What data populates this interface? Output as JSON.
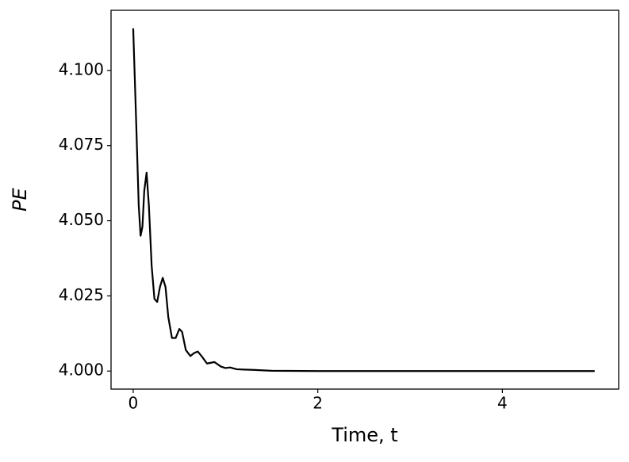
{
  "chart_data": {
    "type": "line",
    "xlabel": "Time, t",
    "ylabel": "PE",
    "x": [
      0.0,
      0.03,
      0.06,
      0.08,
      0.1,
      0.12,
      0.145,
      0.17,
      0.2,
      0.23,
      0.26,
      0.29,
      0.32,
      0.35,
      0.38,
      0.42,
      0.46,
      0.5,
      0.53,
      0.57,
      0.62,
      0.66,
      0.7,
      0.74,
      0.8,
      0.88,
      0.95,
      1.0,
      1.05,
      1.12,
      1.2,
      1.3,
      1.5,
      2.0,
      3.0,
      4.0,
      5.0
    ],
    "series": [
      {
        "color": "#000000",
        "values": [
          4.114,
          4.085,
          4.055,
          4.045,
          4.048,
          4.06,
          4.066,
          4.055,
          4.035,
          4.024,
          4.023,
          4.028,
          4.031,
          4.028,
          4.018,
          4.011,
          4.011,
          4.014,
          4.013,
          4.007,
          4.005,
          4.006,
          4.0065,
          4.005,
          4.0025,
          4.003,
          4.0015,
          4.001,
          4.0012,
          4.0006,
          4.0005,
          4.0004,
          4.0001,
          4.0,
          4.0,
          4.0,
          4.0
        ]
      }
    ],
    "xlim": [
      -0.24,
      5.26
    ],
    "xticks": [
      0,
      2,
      4
    ],
    "ylim": [
      3.994,
      4.12
    ],
    "yticks": [
      {
        "value": 4.0,
        "label": "4.000"
      },
      4.025,
      {
        "value": 4.05,
        "label": "4.050"
      },
      4.075,
      {
        "value": 4.1,
        "label": "4.100"
      }
    ],
    "grid": false
  }
}
